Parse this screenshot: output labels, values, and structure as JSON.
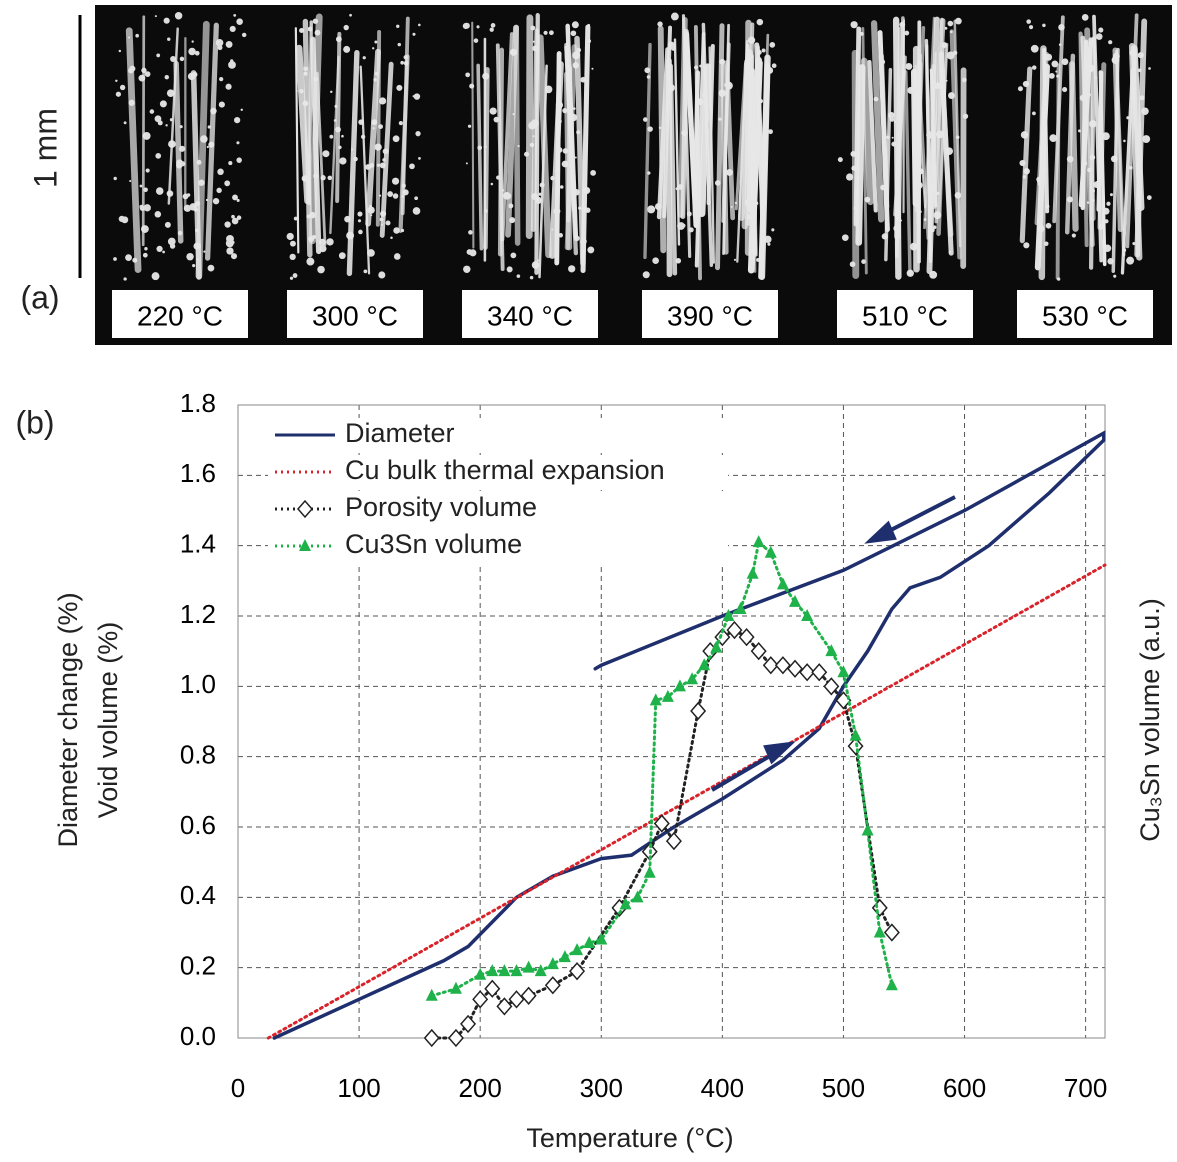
{
  "panel_a": {
    "label": "(a)",
    "scale_bar": "1 mm",
    "temperatures": [
      "220 °C",
      "300 °C",
      "340 °C",
      "390 °C",
      "510 °C",
      "530 °C"
    ]
  },
  "panel_b_label": "(b)",
  "chart_data": {
    "type": "line",
    "x_label": "Temperature (°C)",
    "y_labels": [
      "Diameter change (%)",
      "Void volume (%)"
    ],
    "y2_label": "Cu₃Sn volume (a.u.)",
    "xlim": [
      0,
      716
    ],
    "ylim": [
      0,
      1.8
    ],
    "xticks": [
      0,
      100,
      200,
      300,
      400,
      500,
      600,
      700
    ],
    "yticks": [
      {
        "value": 0,
        "label": "0.0"
      },
      0.2,
      0.4,
      0.6,
      0.8,
      {
        "value": 1,
        "label": "1.0"
      },
      1.2,
      1.4,
      1.6,
      1.8
    ],
    "grid": true,
    "legend": "upper left",
    "series": [
      {
        "name": "Diameter",
        "color": "#1f2f6e",
        "line_style": "solid",
        "marker": null,
        "x": [
          30,
          100,
          170,
          190,
          230,
          260,
          300,
          325,
          360,
          400,
          450,
          480,
          500,
          520,
          540,
          555,
          580,
          620,
          670,
          715,
          715,
          600,
          500,
          400,
          300,
          295
        ],
        "values": [
          0,
          0.11,
          0.22,
          0.26,
          0.4,
          0.46,
          0.51,
          0.52,
          0.6,
          0.68,
          0.79,
          0.88,
          1.0,
          1.1,
          1.22,
          1.28,
          1.31,
          1.4,
          1.55,
          1.7,
          1.72,
          1.5,
          1.33,
          1.2,
          1.06,
          1.05
        ]
      },
      {
        "name": "Cu bulk thermal expansion",
        "color": "#d9232a",
        "line_style": "dotted",
        "marker": null,
        "x": [
          25,
          716
        ],
        "values": [
          0,
          1.345
        ]
      },
      {
        "name": "Porosity volume",
        "color": "#222222",
        "line_style": "dotted",
        "marker": "diamond",
        "x": [
          160,
          180,
          190,
          200,
          210,
          220,
          230,
          240,
          260,
          280,
          315,
          340,
          350,
          360,
          380,
          390,
          400,
          410,
          420,
          430,
          440,
          450,
          460,
          470,
          480,
          490,
          500,
          510,
          530,
          540
        ],
        "values": [
          0,
          0,
          0.04,
          0.11,
          0.14,
          0.09,
          0.11,
          0.12,
          0.15,
          0.19,
          0.37,
          0.53,
          0.61,
          0.56,
          0.93,
          1.1,
          1.14,
          1.16,
          1.14,
          1.1,
          1.06,
          1.06,
          1.05,
          1.04,
          1.04,
          1.0,
          0.96,
          0.83,
          0.37,
          0.3
        ]
      },
      {
        "name": "Cu3Sn volume",
        "color": "#1fb24a",
        "line_style": "dotted",
        "marker": "triangle",
        "x": [
          160,
          180,
          200,
          210,
          220,
          230,
          240,
          250,
          260,
          270,
          280,
          290,
          300,
          320,
          330,
          340,
          345,
          355,
          365,
          375,
          385,
          395,
          405,
          415,
          425,
          430,
          440,
          450,
          460,
          470,
          490,
          500,
          510,
          520,
          530,
          540
        ],
        "values": [
          0.12,
          0.14,
          0.18,
          0.19,
          0.19,
          0.19,
          0.2,
          0.19,
          0.21,
          0.23,
          0.25,
          0.27,
          0.28,
          0.38,
          0.4,
          0.47,
          0.96,
          0.97,
          1.0,
          1.02,
          1.06,
          1.11,
          1.2,
          1.22,
          1.32,
          1.41,
          1.38,
          1.29,
          1.24,
          1.2,
          1.1,
          1.04,
          0.86,
          0.59,
          0.3,
          0.15
        ]
      }
    ]
  }
}
